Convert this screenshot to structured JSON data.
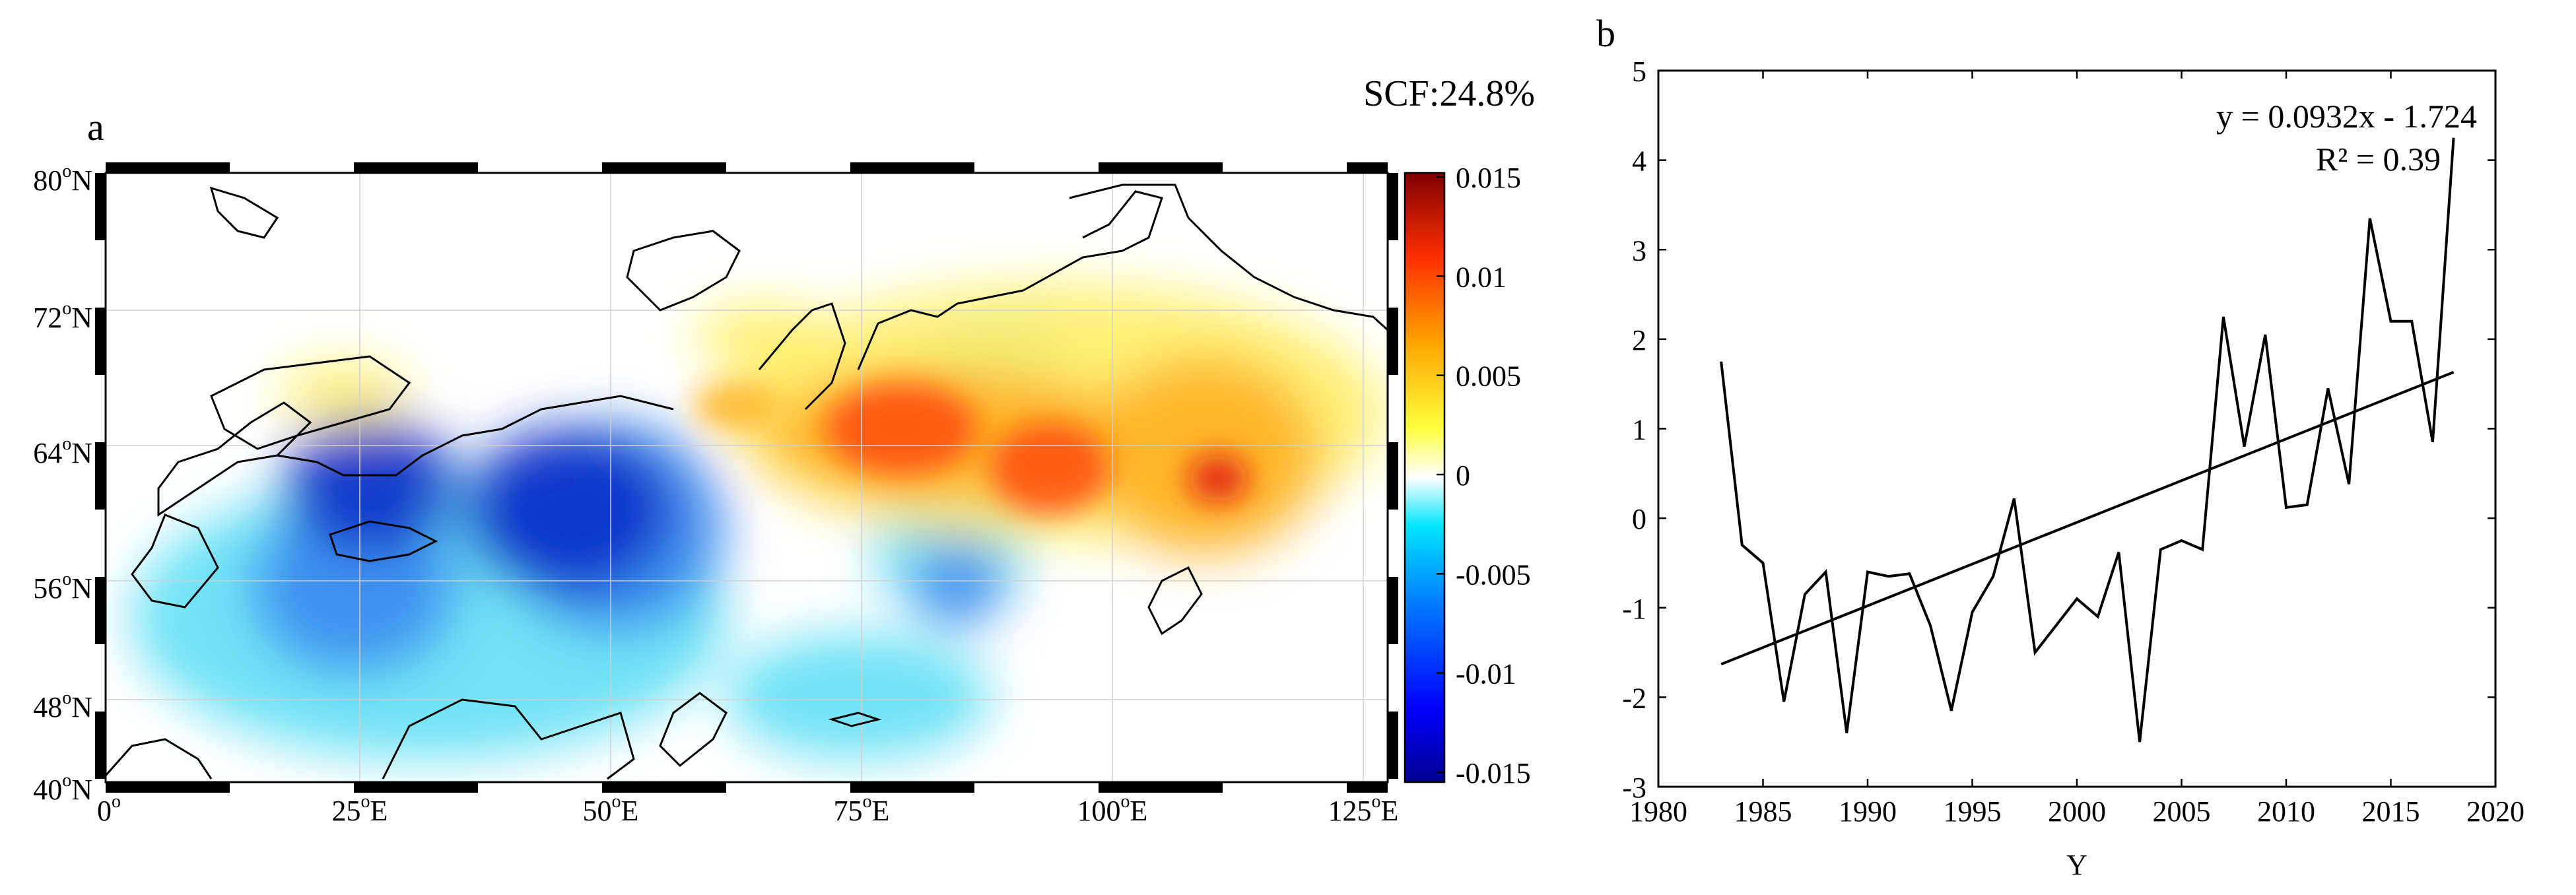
{
  "panel_a": {
    "label": "a",
    "scf_text": "SCF:24.8%",
    "lat_ticks": [
      {
        "deg": "80",
        "unit": "N"
      },
      {
        "deg": "72",
        "unit": "N"
      },
      {
        "deg": "64",
        "unit": "N"
      },
      {
        "deg": "56",
        "unit": "N"
      },
      {
        "deg": "48",
        "unit": "N"
      },
      {
        "deg": "40",
        "unit": "N"
      }
    ],
    "lon_ticks": [
      {
        "deg": "0",
        "unit": ""
      },
      {
        "deg": "25",
        "unit": "E"
      },
      {
        "deg": "50",
        "unit": "E"
      },
      {
        "deg": "75",
        "unit": "E"
      },
      {
        "deg": "100",
        "unit": "E"
      },
      {
        "deg": "125",
        "unit": "E"
      }
    ],
    "colorbar": {
      "ticks": [
        "0.015",
        "0.01",
        "0.005",
        "0",
        "-0.005",
        "-0.01",
        "-0.015"
      ],
      "colors": [
        "#00008f",
        "#0000ff",
        "#0080ff",
        "#00e5ff",
        "#ffffff",
        "#ffff40",
        "#ffa500",
        "#ff3000",
        "#800000"
      ]
    },
    "map_colors": {
      "strong_negative": "#0a2ec8",
      "negative": "#3b8bf0",
      "weak_negative": "#5fe0f5",
      "near_zero": "#ffffff",
      "weak_positive": "#fff06a",
      "positive": "#ffb020",
      "strong_positive": "#ff4a10",
      "peak": "#e01010"
    }
  },
  "chart_data": {
    "type": "line",
    "panel_label": "b",
    "title": "",
    "xlabel": "Y",
    "ylabel": "",
    "xlim": [
      1980,
      2020
    ],
    "ylim": [
      -3,
      5
    ],
    "x_ticks": [
      "1980",
      "1985",
      "1990",
      "1995",
      "2000",
      "2005",
      "2010",
      "2015",
      "2020"
    ],
    "y_ticks": [
      "5",
      "4",
      "3",
      "2",
      "1",
      "0",
      "-1",
      "-2",
      "-3"
    ],
    "x": [
      1983,
      1984,
      1985,
      1986,
      1987,
      1988,
      1989,
      1990,
      1991,
      1992,
      1993,
      1994,
      1995,
      1996,
      1997,
      1998,
      1999,
      2000,
      2001,
      2002,
      2003,
      2004,
      2005,
      2006,
      2007,
      2008,
      2009,
      2010,
      2011,
      2012,
      2013,
      2014,
      2015,
      2016,
      2017,
      2018
    ],
    "values": [
      1.75,
      -0.3,
      -0.5,
      -2.05,
      -0.85,
      -0.6,
      -2.4,
      -0.6,
      -0.65,
      -0.62,
      -1.2,
      -2.15,
      -1.05,
      -0.65,
      0.22,
      -1.5,
      -1.2,
      -0.9,
      -1.1,
      -0.38,
      -2.5,
      -0.35,
      -0.25,
      -0.35,
      2.25,
      0.8,
      2.05,
      0.12,
      0.15,
      1.45,
      0.38,
      3.35,
      2.2,
      2.2,
      0.85,
      4.25
    ],
    "trend": {
      "slope": 0.0932,
      "intercept": -1.724,
      "x0": 1983,
      "x1": 2018
    },
    "equation": "y = 0.0932x - 1.724",
    "r_squared": "R² = 0.39"
  }
}
